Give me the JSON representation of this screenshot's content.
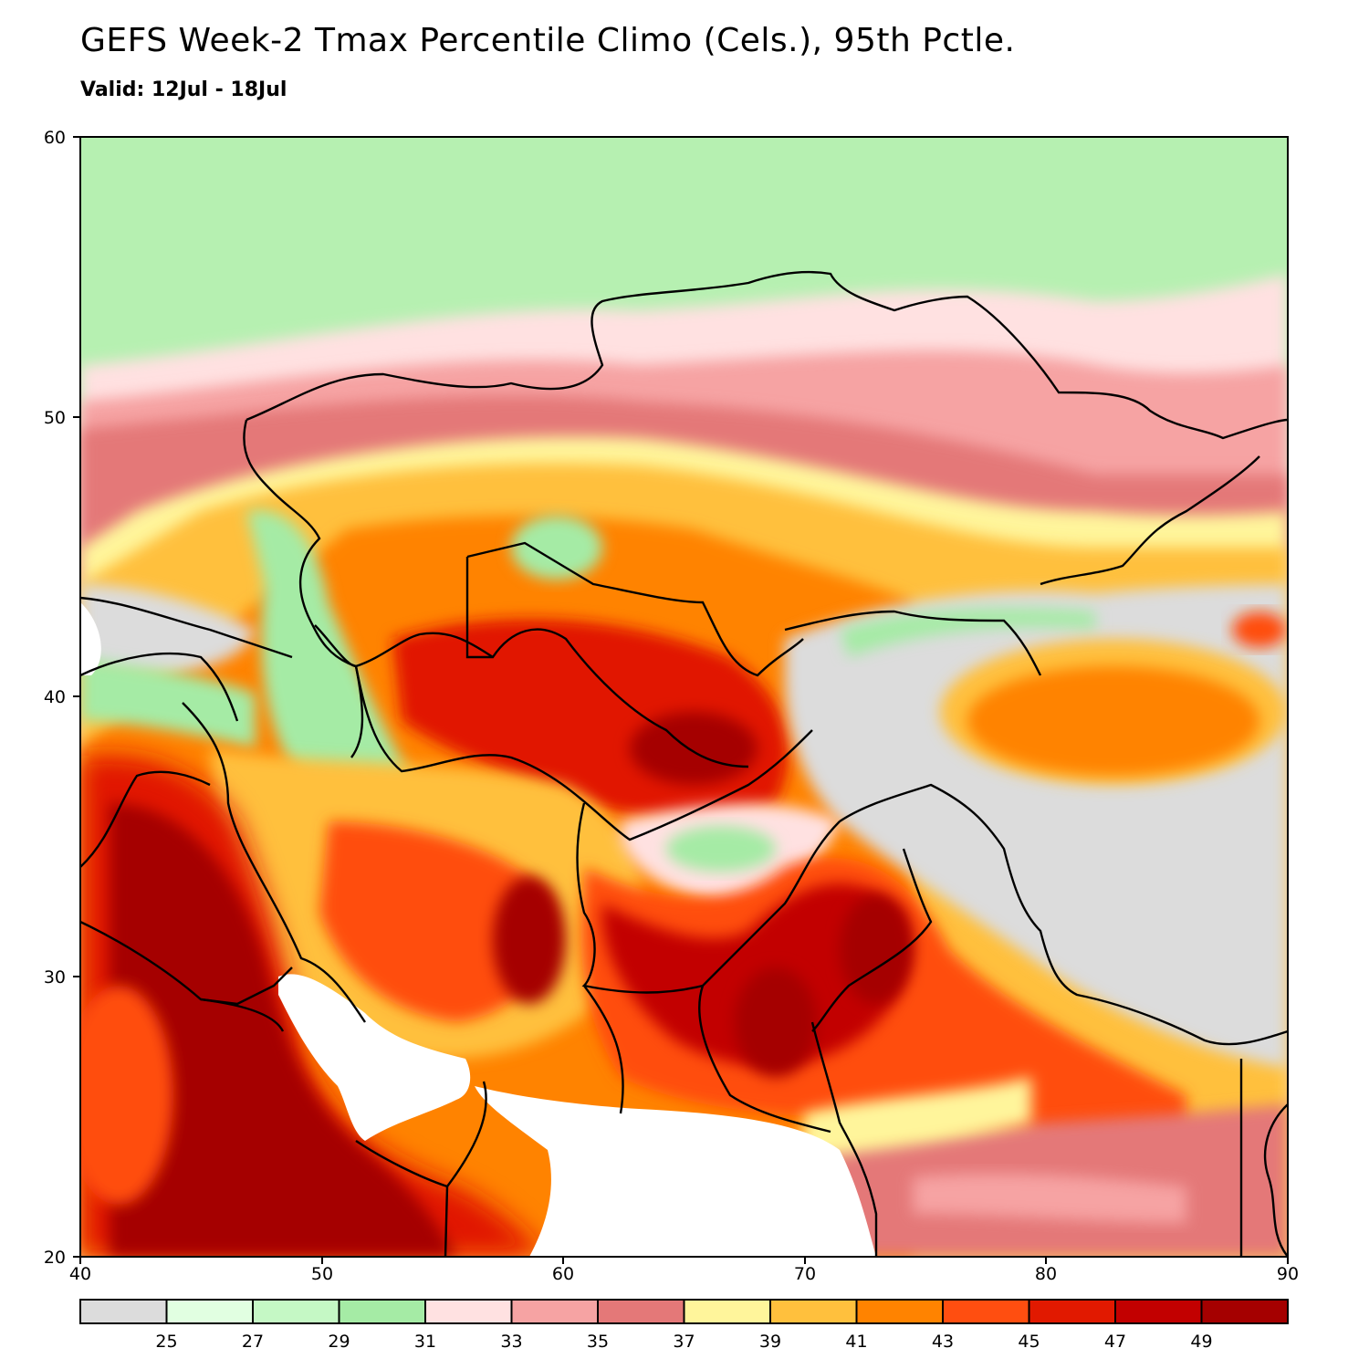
{
  "header": {
    "title": "GEFS Week-2 Tmax Percentile Climo (Cels.), 95th Pctle.",
    "valid": "Valid: 12Jul - 18Jul"
  },
  "map": {
    "lon_range": [
      40,
      90
    ],
    "lat_range": [
      20,
      60
    ],
    "x_ticks": [
      "40",
      "50",
      "60",
      "70",
      "80",
      "90"
    ],
    "y_ticks": [
      "60",
      "50",
      "40",
      "30",
      "20"
    ]
  },
  "colorbar": {
    "labels": [
      "25",
      "27",
      "29",
      "31",
      "33",
      "35",
      "37",
      "39",
      "41",
      "43",
      "45",
      "47",
      "49"
    ],
    "colors": [
      "#dcdcdc",
      "#e1ffe1",
      "#c5f8c5",
      "#a5eba5",
      "#ffe1e1",
      "#f6a3a3",
      "#e47878",
      "#fff59b",
      "#ffc03d",
      "#ff8300",
      "#ff4e10",
      "#e11900",
      "#c20000",
      "#a50000"
    ]
  }
}
